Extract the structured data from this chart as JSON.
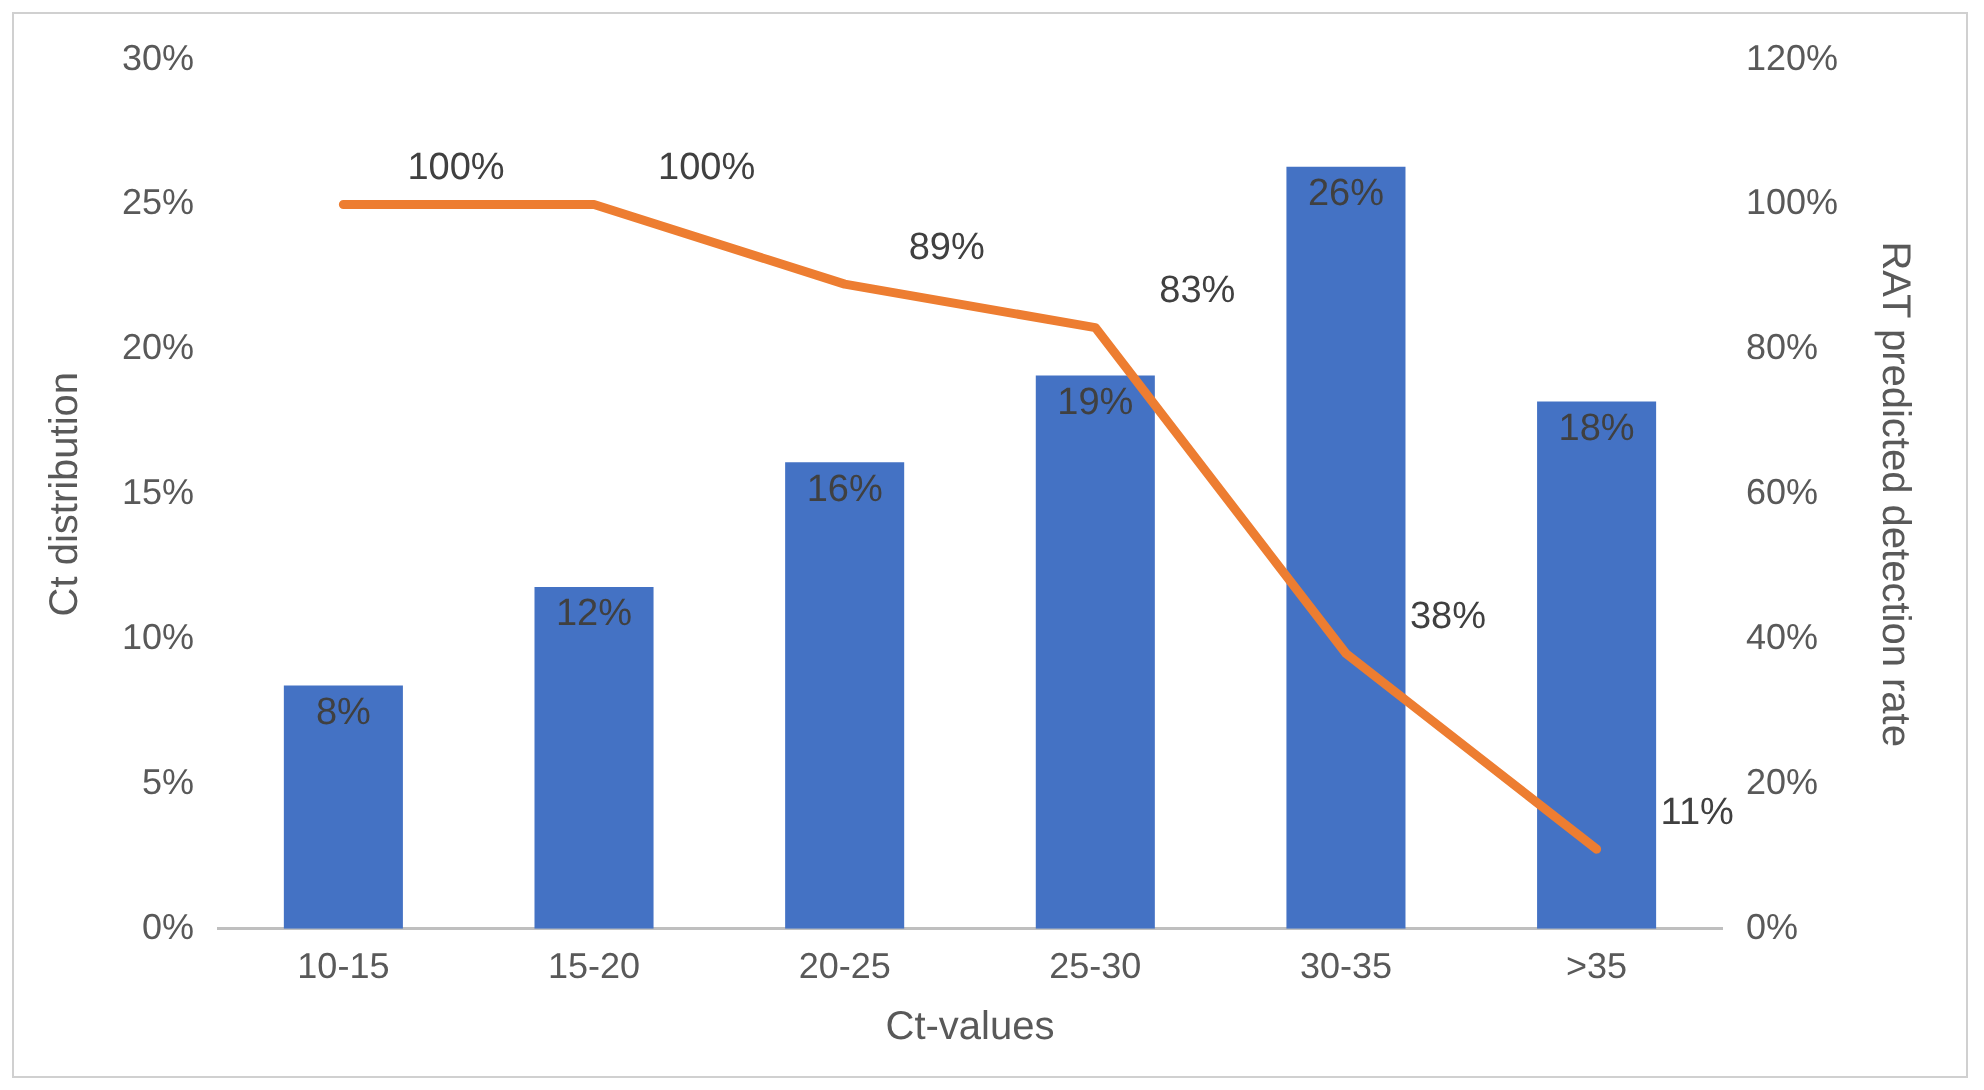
{
  "chart_data": {
    "type": "bar",
    "xlabel": "Ct-values",
    "ylabel": "Ct distribution",
    "y2label": "RAT predicted detection rate",
    "categories": [
      "10-15",
      "15-20",
      "20-25",
      "25-30",
      "30-35",
      ">35"
    ],
    "series": [
      {
        "type": "bar",
        "color": "#4472c4",
        "values": [
          8.4,
          11.8,
          16.1,
          19.1,
          26.3,
          18.2
        ],
        "value_labels": [
          "8%",
          "12%",
          "16%",
          "19%",
          "26%",
          "18%"
        ]
      },
      {
        "type": "line",
        "axis": "y2",
        "color": "#ed7d31",
        "values": [
          100,
          100,
          89,
          83,
          38,
          11
        ],
        "value_labels": [
          "100%",
          "100%",
          "89%",
          "83%",
          "38%",
          "11%"
        ]
      }
    ],
    "ylim": [
      0,
      30
    ],
    "yticks": [
      {
        "value": 0,
        "label": "0%"
      },
      {
        "value": 5,
        "label": "5%"
      },
      {
        "value": 10,
        "label": "10%"
      },
      {
        "value": 15,
        "label": "15%"
      },
      {
        "value": 20,
        "label": "20%"
      },
      {
        "value": 25,
        "label": "25%"
      },
      {
        "value": 30,
        "label": "30%"
      }
    ],
    "y2lim": [
      0,
      120
    ],
    "y2ticks": [
      {
        "value": 0,
        "label": "0%"
      },
      {
        "value": 20,
        "label": "20%"
      },
      {
        "value": 40,
        "label": "40%"
      },
      {
        "value": 60,
        "label": "60%"
      },
      {
        "value": 80,
        "label": "80%"
      },
      {
        "value": 100,
        "label": "100%"
      },
      {
        "value": 120,
        "label": "120%"
      }
    ],
    "grid": false,
    "legend": false,
    "marker": "none",
    "line_style": "solid"
  }
}
